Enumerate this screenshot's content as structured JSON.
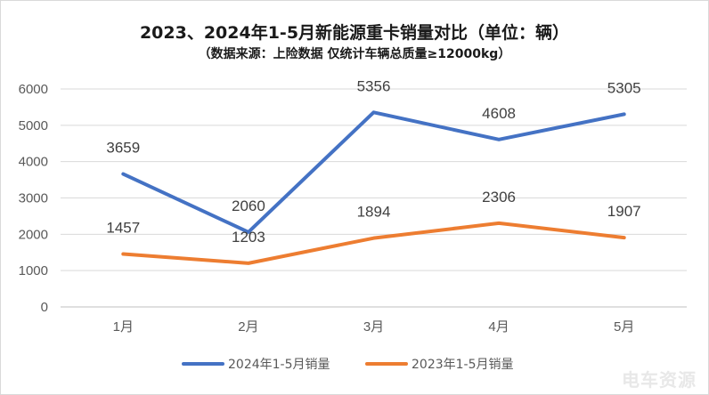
{
  "chart_data": {
    "type": "line",
    "title": "2023、2024年1-5月新能源重卡销量对比（单位：辆）",
    "subtitle": "（数据来源：上险数据 仅统计车辆总质量≥12000kg）",
    "categories": [
      "1月",
      "2月",
      "3月",
      "4月",
      "5月"
    ],
    "ylim": [
      0,
      6000
    ],
    "yticks": [
      0,
      1000,
      2000,
      3000,
      4000,
      5000,
      6000
    ],
    "grid": true,
    "legend_position": "bottom",
    "series": [
      {
        "name": "2024年1-5月销量",
        "color": "#4472c4",
        "values": [
          3659,
          2060,
          5356,
          4608,
          5305
        ]
      },
      {
        "name": "2023年1-5月销量",
        "color": "#ed7d31",
        "values": [
          1457,
          1203,
          1894,
          2306,
          1907
        ]
      }
    ]
  },
  "watermark": "电车资源"
}
